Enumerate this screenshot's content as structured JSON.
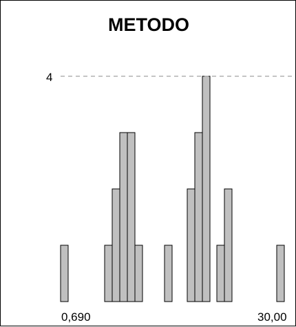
{
  "chart_data": {
    "type": "bar",
    "title": "METODO",
    "x_tick_labels": [
      "0,690",
      "30,00"
    ],
    "y_reference": {
      "value": 4,
      "label": "4"
    },
    "ylim": [
      0,
      4
    ],
    "bars": [
      {
        "value": 1
      },
      {
        "value": 1
      },
      {
        "value": 2
      },
      {
        "value": 3
      },
      {
        "value": 3
      },
      {
        "value": 1
      },
      {
        "value": 1
      },
      {
        "value": 2
      },
      {
        "value": 3
      },
      {
        "value": 4
      },
      {
        "value": 1
      },
      {
        "value": 2
      },
      {
        "value": 1
      }
    ],
    "bar_color": "#c0c0c0",
    "edge_color": "#000000",
    "reference_line_color": "#888888"
  }
}
